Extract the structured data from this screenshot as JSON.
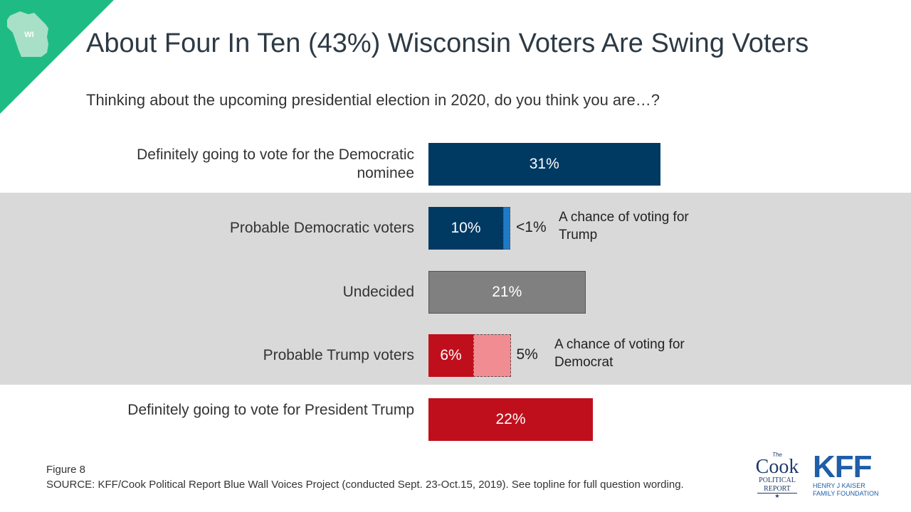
{
  "header": {
    "badge": "WI",
    "title": "About Four In Ten (43%) Wisconsin Voters Are Swing Voters",
    "subtitle": "Thinking about the upcoming presidential election in 2020, do you think you are…?"
  },
  "colors": {
    "dem": "#003a63",
    "dem_chance": "#1f7ac6",
    "undecided": "#808080",
    "rep": "#c00f1c",
    "rep_chance": "#f08c92",
    "band": "#d9d9d9",
    "corner": "#1ebc84",
    "state": "#a8e0c7"
  },
  "chart_data": {
    "type": "bar",
    "orientation": "horizontal",
    "xlim": [
      0,
      60
    ],
    "categories": [
      "Definitely going to vote for the Democratic nominee",
      "Probable Democratic voters",
      "Undecided",
      "Probable Trump voters",
      "Definitely going to vote for President Trump"
    ],
    "values": [
      31,
      10,
      21,
      6,
      22
    ],
    "labels": [
      "31%",
      "10%",
      "21%",
      "6%",
      "22%"
    ],
    "chance": [
      null,
      {
        "value": 0.5,
        "label": "<1%",
        "note": "A chance of voting for Trump"
      },
      null,
      {
        "value": 5,
        "label": "5%",
        "note": "A chance of voting for Democrat"
      },
      null
    ]
  },
  "footer": {
    "figure": "Figure 8",
    "source": "SOURCE: KFF/Cook Political Report Blue Wall Voices Project (conducted Sept. 23-Oct.15, 2019). See topline for full question wording."
  },
  "logos": {
    "cook": {
      "the": "The",
      "name": "Cook",
      "line1": "POLITICAL",
      "line2": "REPORT"
    },
    "kff": {
      "name": "KFF",
      "line1": "HENRY J KAISER",
      "line2": "FAMILY FOUNDATION"
    }
  }
}
